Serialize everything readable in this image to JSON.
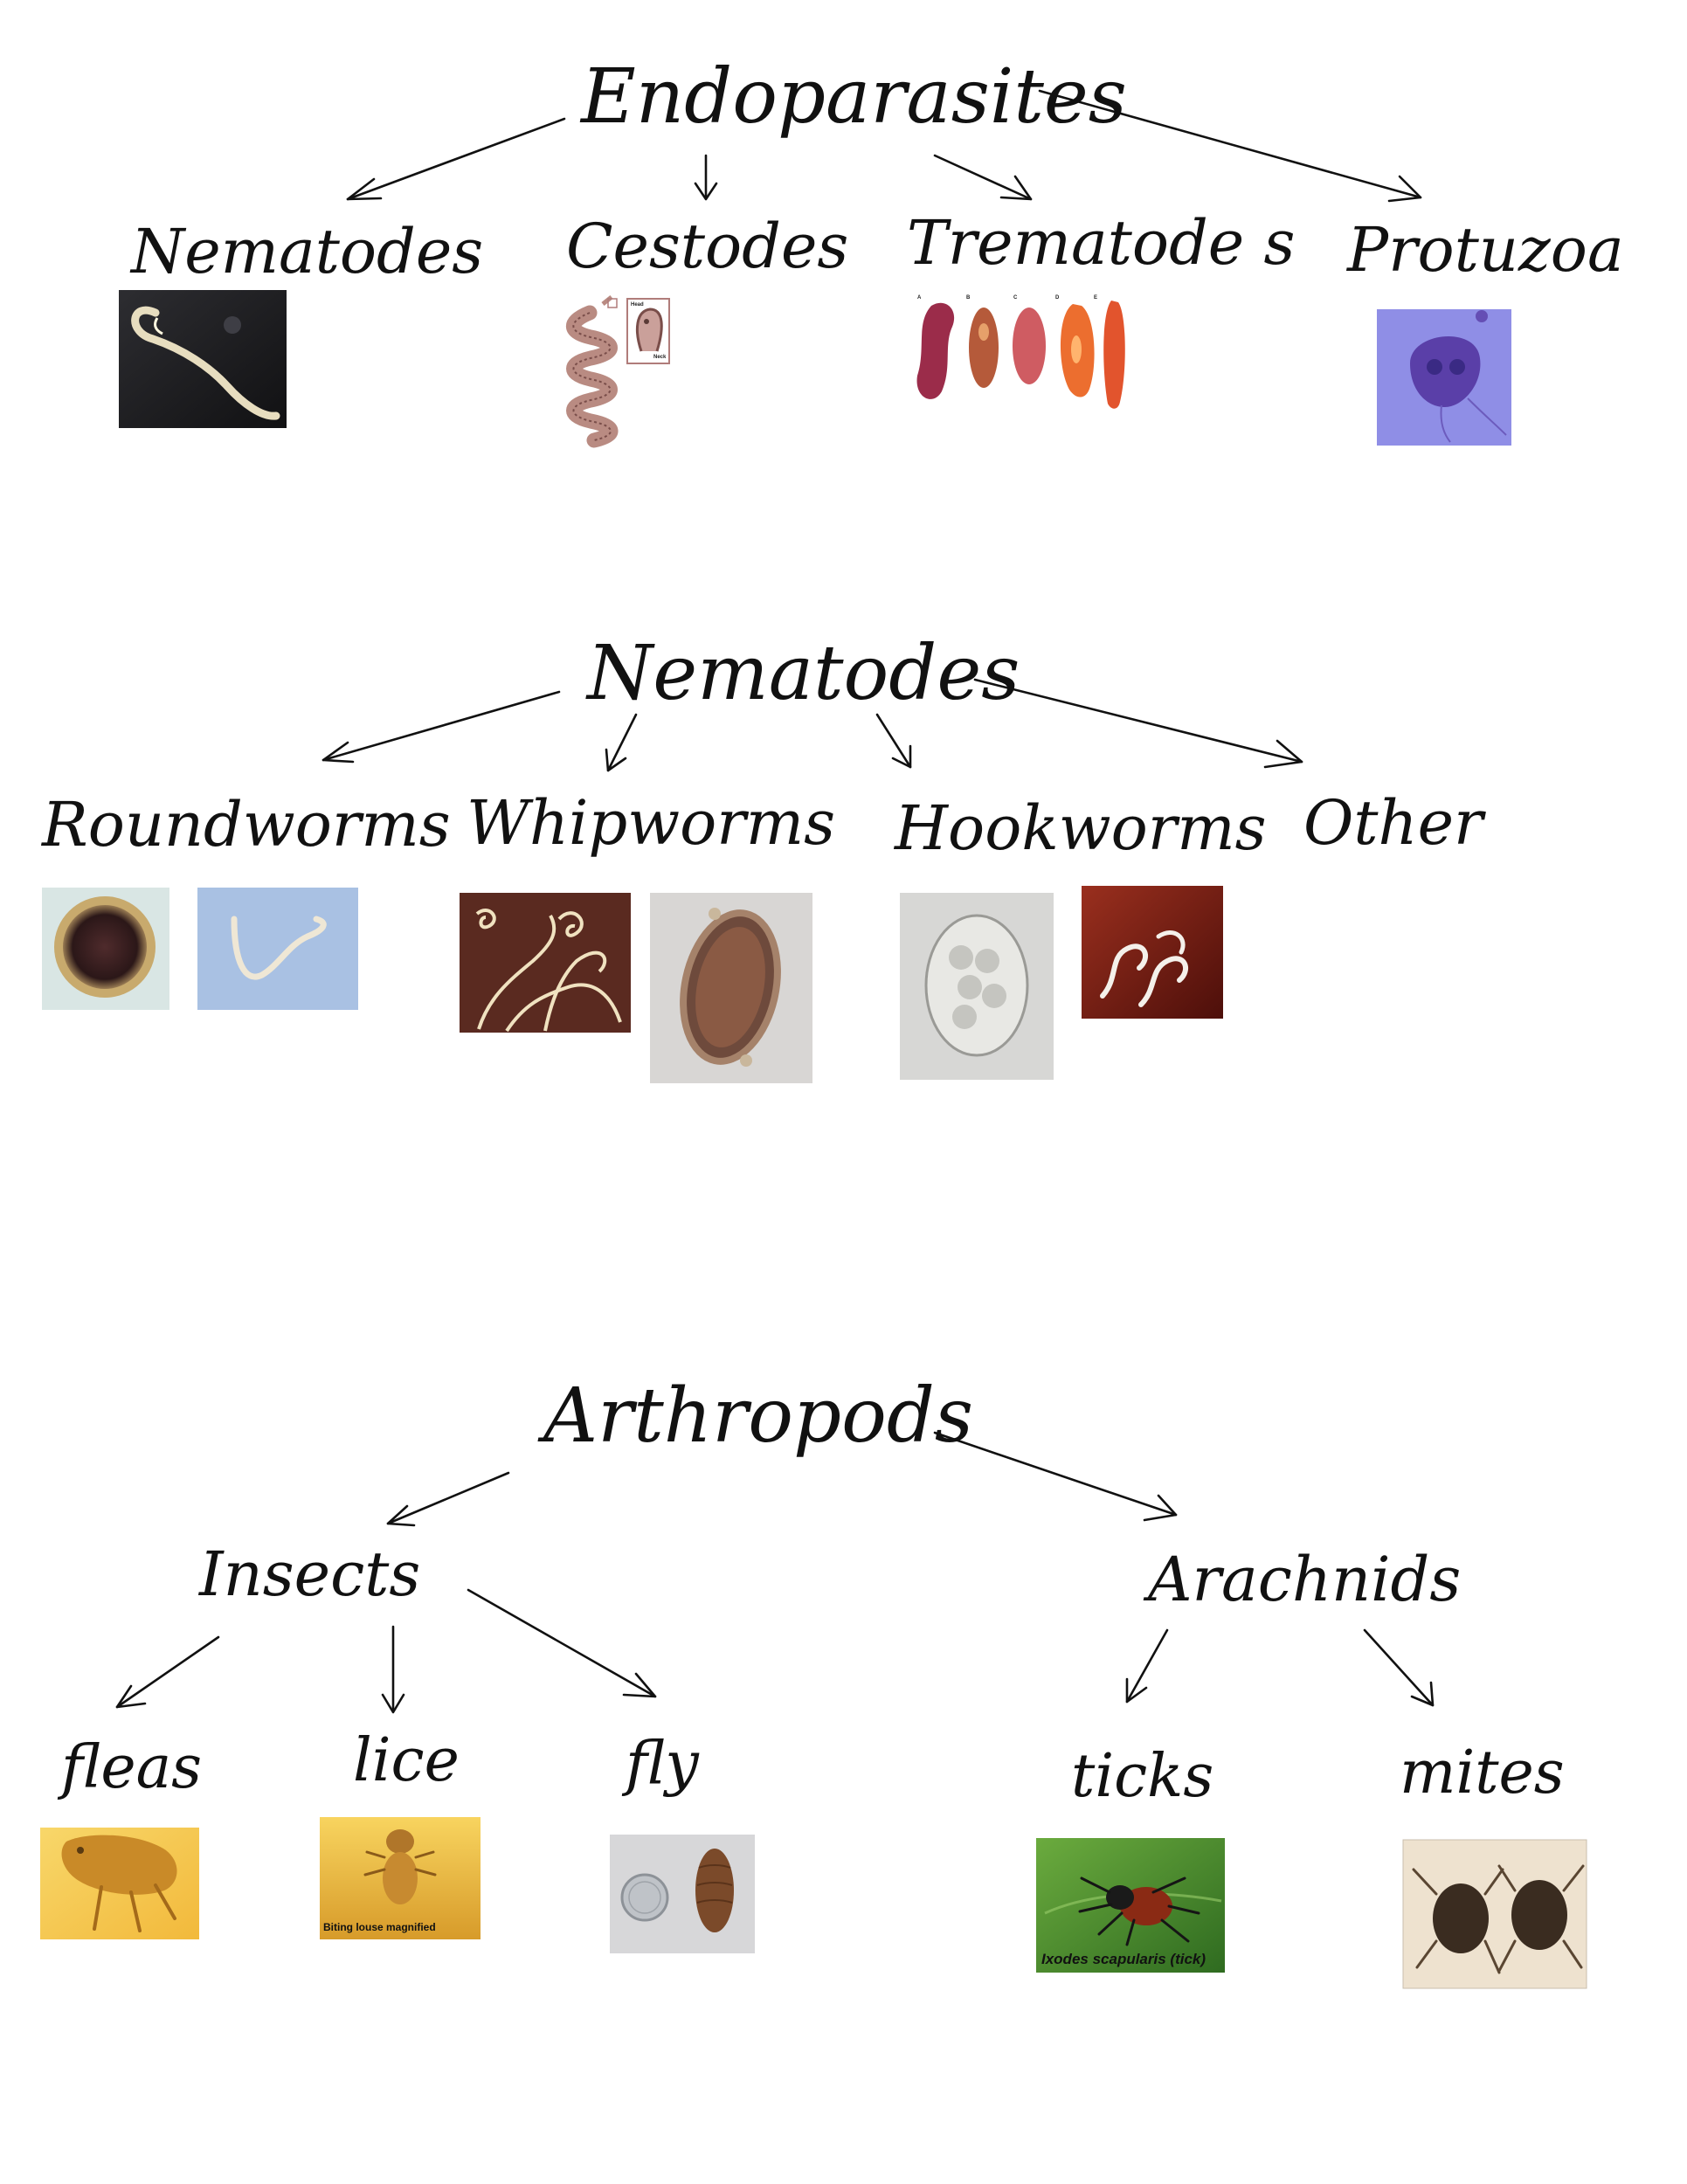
{
  "diagram": {
    "sections": [
      {
        "id": "endoparasites",
        "title": "Endoparasites",
        "children": [
          {
            "label": "Nematodes",
            "image": "nematode-worm-photo"
          },
          {
            "label": "Cestodes",
            "image": "tapeworm-illustration"
          },
          {
            "label": "Trematode s",
            "image": "fluke-specimens-photo"
          },
          {
            "label": "Protuzoa",
            "image": "giardia-protozoa-micrograph"
          }
        ]
      },
      {
        "id": "nematodes",
        "title": "Nematodes",
        "children": [
          {
            "label": "Roundworms",
            "images": [
              "roundworm-egg-micrograph",
              "roundworm-photo"
            ]
          },
          {
            "label": "Whipworms",
            "images": [
              "whipworms-photo",
              "whipworm-egg-micrograph"
            ]
          },
          {
            "label": "Hookworms",
            "images": [
              "hookworm-egg-micrograph",
              "hookworms-photo"
            ]
          },
          {
            "label": "Other",
            "images": []
          }
        ]
      },
      {
        "id": "arthropods",
        "title": "Arthropods",
        "children": [
          {
            "label": "Insects",
            "children": [
              {
                "label": "fleas",
                "image": "flea-micrograph"
              },
              {
                "label": "lice",
                "image": "louse-micrograph",
                "caption": "Biting louse magnified"
              },
              {
                "label": "fly",
                "image": "fly-pupa-and-coin-photo"
              }
            ]
          },
          {
            "label": "Arachnids",
            "children": [
              {
                "label": "ticks",
                "image": "tick-photo",
                "caption": "Ixodes scapularis (tick)"
              },
              {
                "label": "mites",
                "image": "mites-micrograph"
              }
            ]
          }
        ]
      }
    ],
    "trematode_panel_labels": [
      "A",
      "B",
      "C",
      "D",
      "E"
    ],
    "cestode_inset_labels": [
      "Head",
      "Neck"
    ],
    "colors": {
      "ink": "#111111",
      "background": "#ffffff",
      "protozoa_bg": "#8f8ee6",
      "flea_bg": "#f7d35e",
      "louse_bg": "#f1c446",
      "tick_bg": "#4e8b2e",
      "hookworm_bg": "#7b1a12",
      "whipworm_bg": "#5a2a20"
    }
  }
}
